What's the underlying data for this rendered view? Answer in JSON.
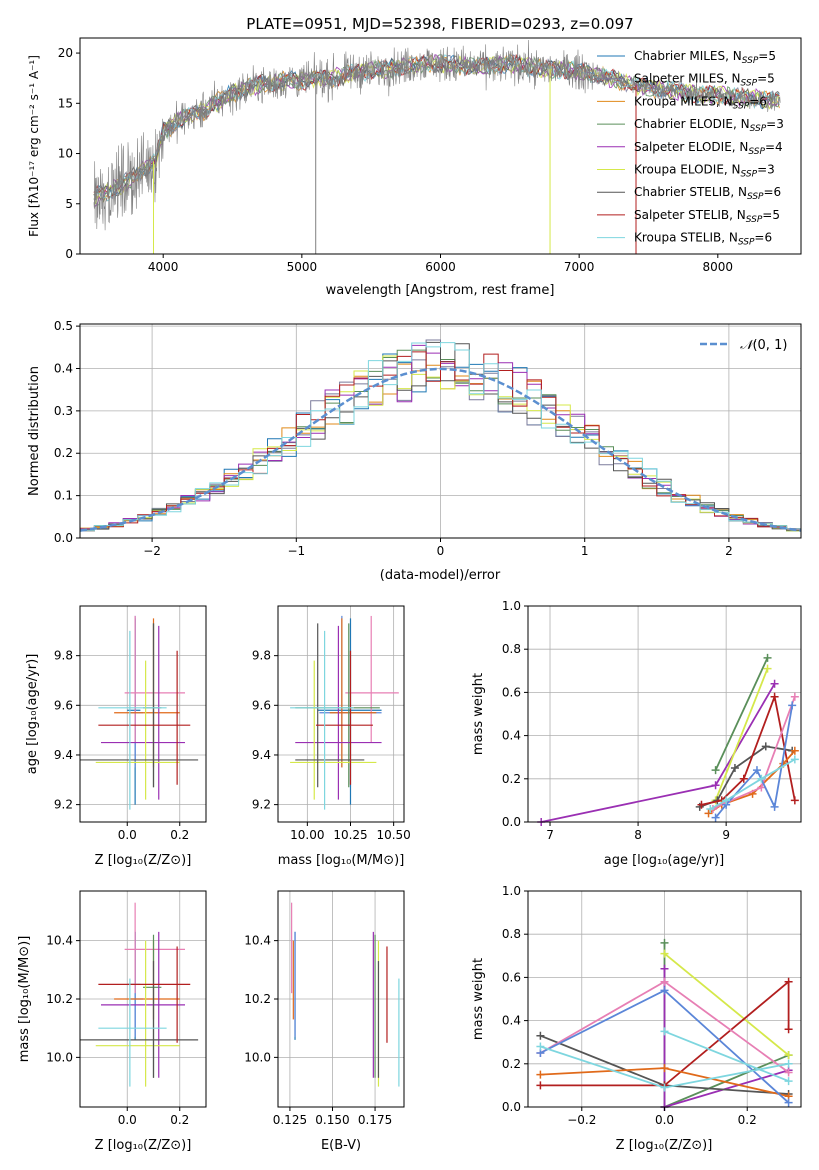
{
  "figure_title": "PLATE=0951, MJD=52398, FIBERID=0293, z=0.097",
  "colors": {
    "chabrier_miles": "#1f77b4",
    "salpeter_miles": "#7b7b9b",
    "kroupa_miles": "#e08a1a",
    "chabrier_elodie": "#5a8f5a",
    "salpeter_elodie": "#9a2fb3",
    "kroupa_elodie": "#d5e84a",
    "chabrier_stelib": "#555555",
    "salpeter_stelib": "#b21f1f",
    "kroupa_stelib": "#7ed6df",
    "extra_blue": "#5b86d8",
    "extra_pink": "#e77fb4",
    "extra_orange": "#e06a1a",
    "data_gray": "#808080",
    "normal_dash": "#5b8fd0"
  },
  "chart_data": [
    {
      "id": "spectrum",
      "type": "line",
      "title": "PLATE=0951, MJD=52398, FIBERID=0293, z=0.097",
      "xlabel": "wavelength [Angstrom, rest frame]",
      "ylabel": "Flux [fλ10⁻¹⁷ erg cm⁻² s⁻¹ A⁻¹]",
      "xlim": [
        3400,
        8600
      ],
      "ylim": [
        0,
        21.5
      ],
      "xticks": [
        "4000",
        "5000",
        "6000",
        "7000",
        "8000"
      ],
      "yticks": [
        "0",
        "5",
        "10",
        "15",
        "20"
      ],
      "grid": false,
      "legend_position": "right",
      "legend": [
        {
          "main": "Chabrier MILES, N",
          "sub": "SSP",
          "tail": "=5",
          "color": "#1f77b4"
        },
        {
          "main": "Salpeter MILES, N",
          "sub": "SSP",
          "tail": "=5",
          "color": "#7b7b9b"
        },
        {
          "main": "Kroupa MILES, N",
          "sub": "SSP",
          "tail": "=6",
          "color": "#e08a1a"
        },
        {
          "main": "Chabrier ELODIE, N",
          "sub": "SSP",
          "tail": "=3",
          "color": "#5a8f5a"
        },
        {
          "main": "Salpeter ELODIE, N",
          "sub": "SSP",
          "tail": "=4",
          "color": "#9a2fb3"
        },
        {
          "main": "Kroupa ELODIE, N",
          "sub": "SSP",
          "tail": "=3",
          "color": "#d5e84a"
        },
        {
          "main": "Chabrier STELIB, N",
          "sub": "SSP",
          "tail": "=6",
          "color": "#555555"
        },
        {
          "main": "Salpeter STELIB, N",
          "sub": "SSP",
          "tail": "=5",
          "color": "#b21f1f"
        },
        {
          "main": "Kroupa STELIB, N",
          "sub": "SSP",
          "tail": "=6",
          "color": "#7ed6df"
        }
      ],
      "continuum": [
        [
          3500,
          5.6
        ],
        [
          3600,
          6.2
        ],
        [
          3700,
          6.9
        ],
        [
          3800,
          7.8
        ],
        [
          3900,
          8.8
        ],
        [
          3950,
          9.5
        ],
        [
          4000,
          12.2
        ],
        [
          4100,
          13.2
        ],
        [
          4200,
          13.8
        ],
        [
          4300,
          14.3
        ],
        [
          4400,
          15.2
        ],
        [
          4500,
          16.0
        ],
        [
          4600,
          16.5
        ],
        [
          4700,
          16.9
        ],
        [
          4800,
          17.0
        ],
        [
          4900,
          17.3
        ],
        [
          5000,
          17.2
        ],
        [
          5100,
          17.5
        ],
        [
          5200,
          17.4
        ],
        [
          5300,
          17.8
        ],
        [
          5400,
          18.1
        ],
        [
          5500,
          18.3
        ],
        [
          5600,
          18.4
        ],
        [
          5700,
          18.6
        ],
        [
          5800,
          18.8
        ],
        [
          5900,
          19.0
        ],
        [
          6000,
          18.9
        ],
        [
          6100,
          18.8
        ],
        [
          6200,
          18.7
        ],
        [
          6300,
          18.6
        ],
        [
          6400,
          18.8
        ],
        [
          6500,
          18.9
        ],
        [
          6600,
          18.7
        ],
        [
          6700,
          18.5
        ],
        [
          6800,
          18.4
        ],
        [
          6900,
          18.3
        ],
        [
          7000,
          18.2
        ],
        [
          7100,
          17.9
        ],
        [
          7200,
          17.6
        ],
        [
          7300,
          17.2
        ],
        [
          7400,
          16.8
        ],
        [
          7500,
          16.6
        ],
        [
          7600,
          16.4
        ],
        [
          7700,
          16.2
        ],
        [
          7800,
          16.0
        ],
        [
          7900,
          15.9
        ],
        [
          8000,
          15.8
        ],
        [
          8100,
          15.7
        ],
        [
          8200,
          15.6
        ],
        [
          8300,
          15.4
        ],
        [
          8400,
          15.3
        ],
        [
          8500,
          15.2
        ]
      ]
    },
    {
      "id": "residuals",
      "type": "histogram",
      "xlabel": "(data-model)/error",
      "ylabel": "Normed distribution",
      "xlim": [
        -2.5,
        2.5
      ],
      "ylim": [
        0,
        0.505
      ],
      "xticks": [
        "−2",
        "−1",
        "0",
        "1",
        "2"
      ],
      "yticks": [
        "0.0",
        "0.1",
        "0.2",
        "0.3",
        "0.4",
        "0.5"
      ],
      "grid": true,
      "legend_position": "top-right",
      "legend_label_script": "𝒩",
      "legend_label_rest": "(0, 1)",
      "bin_width": 0.1
    },
    {
      "id": "age-vs-Z",
      "type": "scatter",
      "xlabel": "Z [log₁₀(Z/Z⊙)]",
      "ylabel": "age  [log₁₀(age/yr)]",
      "xlim": [
        -0.18,
        0.3
      ],
      "ylim": [
        9.13,
        10.0
      ],
      "xticks": [
        "0.0",
        "0.2"
      ],
      "yticks": [
        "9.2",
        "9.4",
        "9.6",
        "9.8"
      ],
      "grid": true
    },
    {
      "id": "age-vs-mass",
      "type": "scatter",
      "xlabel": "mass [log₁₀(M/M⊙)]",
      "ylabel": "",
      "xlim": [
        9.83,
        10.56
      ],
      "ylim": [
        9.13,
        10.0
      ],
      "xticks": [
        "10.00",
        "10.25",
        "10.50"
      ],
      "yticks": [
        "9.2",
        "9.4",
        "9.6",
        "9.8"
      ],
      "grid": true
    },
    {
      "id": "weight-vs-age",
      "type": "line",
      "xlabel": "age  [log₁₀(age/yr)]",
      "ylabel": "mass weight",
      "xlim": [
        6.75,
        9.85
      ],
      "ylim": [
        0,
        1.0
      ],
      "xticks": [
        "7",
        "8",
        "9"
      ],
      "yticks": [
        "0.0",
        "0.2",
        "0.4",
        "0.6",
        "0.8",
        "1.0"
      ],
      "grid": true
    },
    {
      "id": "mass-vs-Z",
      "type": "scatter",
      "xlabel": "Z [log₁₀(Z/Z⊙)]",
      "ylabel": "mass [log₁₀(M/M⊙)]",
      "xlim": [
        -0.18,
        0.3
      ],
      "ylim": [
        9.83,
        10.57
      ],
      "xticks": [
        "0.0",
        "0.2"
      ],
      "yticks": [
        "10.0",
        "10.2",
        "10.4"
      ],
      "grid": true
    },
    {
      "id": "mass-vs-ebv",
      "type": "scatter",
      "xlabel": "E(B-V)",
      "ylabel": "",
      "xlim": [
        0.118,
        0.192
      ],
      "ylim": [
        9.83,
        10.57
      ],
      "xticks": [
        "0.125",
        "0.150",
        "0.175"
      ],
      "yticks": [
        "10.0",
        "10.2",
        "10.4"
      ],
      "grid": true
    },
    {
      "id": "weight-vs-Z",
      "type": "line",
      "xlabel": "Z [log₁₀(Z/Z⊙)]",
      "ylabel": "mass weight",
      "xlim": [
        -0.33,
        0.33
      ],
      "ylim": [
        0,
        1.0
      ],
      "xticks": [
        "−0.2",
        "0.0",
        "0.2"
      ],
      "yticks": [
        "0.0",
        "0.2",
        "0.4",
        "0.6",
        "0.8",
        "1.0"
      ],
      "grid": true
    }
  ],
  "fits": [
    {
      "c": "#1f77b4",
      "Z": 0.03,
      "Zl": 0.0,
      "Zh": 0.05,
      "age": 9.58,
      "al": 9.2,
      "ah": 9.95,
      "mass": 10.25,
      "ml": 10.06,
      "mh": 10.43,
      "ebv": 0.128
    },
    {
      "c": "#5b86d8",
      "Z": 0.03,
      "Zl": 0.01,
      "Zh": 0.06,
      "age": 9.57,
      "al": 9.35,
      "ah": 9.96,
      "mass": 10.2,
      "ml": 10.07,
      "mh": 10.43,
      "ebv": 0.128
    },
    {
      "c": "#e77fb4",
      "Z": 0.03,
      "Zl": -0.01,
      "Zh": 0.22,
      "age": 9.65,
      "al": 9.45,
      "ah": 9.96,
      "mass": 10.37,
      "ml": 10.22,
      "mh": 10.53,
      "ebv": 0.126
    },
    {
      "c": "#e06a1a",
      "Z": 0.1,
      "Zl": -0.05,
      "Zh": 0.2,
      "age": 9.57,
      "al": 9.35,
      "ah": 9.95,
      "mass": 10.2,
      "ml": 10.13,
      "mh": 10.4,
      "ebv": 0.127
    },
    {
      "c": "#5a8f5a",
      "Z": 0.1,
      "Zl": 0.06,
      "Zh": 0.13,
      "age": 9.59,
      "al": 9.27,
      "ah": 9.93,
      "mass": 10.24,
      "ml": 9.93,
      "mh": 10.42,
      "ebv": 0.175
    },
    {
      "c": "#9a2fb3",
      "Z": 0.12,
      "Zl": -0.1,
      "Zh": 0.22,
      "age": 9.45,
      "al": 9.22,
      "ah": 9.92,
      "mass": 10.18,
      "ml": 9.93,
      "mh": 10.43,
      "ebv": 0.174
    },
    {
      "c": "#d5e84a",
      "Z": 0.07,
      "Zl": -0.12,
      "Zh": 0.2,
      "age": 9.37,
      "al": 9.22,
      "ah": 9.78,
      "mass": 10.04,
      "ml": 9.9,
      "mh": 10.4,
      "ebv": 0.177
    },
    {
      "c": "#555555",
      "Z": 0.1,
      "Zl": -0.18,
      "Zh": 0.27,
      "age": 9.38,
      "al": 9.27,
      "ah": 9.93,
      "mass": 10.06,
      "ml": 9.93,
      "mh": 10.33,
      "ebv": 0.177
    },
    {
      "c": "#b21f1f",
      "Z": 0.19,
      "Zl": -0.11,
      "Zh": 0.24,
      "age": 9.52,
      "al": 9.28,
      "ah": 9.82,
      "mass": 10.25,
      "ml": 10.05,
      "mh": 10.38,
      "ebv": 0.182
    },
    {
      "c": "#7ed6df",
      "Z": 0.01,
      "Zl": -0.11,
      "Zh": 0.15,
      "age": 9.59,
      "al": 9.18,
      "ah": 9.9,
      "mass": 10.1,
      "ml": 9.9,
      "mh": 10.27,
      "ebv": 0.189
    }
  ],
  "weights_age": [
    {
      "c": "#5a8f5a",
      "pts": [
        [
          8.88,
          0.24
        ],
        [
          9.47,
          0.76
        ]
      ]
    },
    {
      "c": "#9a2fb3",
      "pts": [
        [
          6.9,
          0.0
        ],
        [
          8.88,
          0.17
        ],
        [
          9.55,
          0.64
        ]
      ]
    },
    {
      "c": "#d5e84a",
      "pts": [
        [
          8.88,
          0.1
        ],
        [
          9.47,
          0.71
        ]
      ]
    },
    {
      "c": "#555555",
      "pts": [
        [
          8.7,
          0.07
        ],
        [
          8.9,
          0.1
        ],
        [
          9.1,
          0.25
        ],
        [
          9.45,
          0.35
        ],
        [
          9.75,
          0.33
        ]
      ]
    },
    {
      "c": "#b21f1f",
      "pts": [
        [
          8.72,
          0.08
        ],
        [
          8.95,
          0.1
        ],
        [
          9.2,
          0.2
        ],
        [
          9.55,
          0.58
        ],
        [
          9.78,
          0.1
        ]
      ]
    },
    {
      "c": "#e06a1a",
      "pts": [
        [
          8.8,
          0.04
        ],
        [
          8.95,
          0.08
        ],
        [
          9.3,
          0.13
        ],
        [
          9.65,
          0.27
        ],
        [
          9.78,
          0.33
        ]
      ]
    },
    {
      "c": "#e77fb4",
      "pts": [
        [
          8.85,
          0.06
        ],
        [
          9.0,
          0.09
        ],
        [
          9.4,
          0.16
        ],
        [
          9.78,
          0.58
        ]
      ]
    },
    {
      "c": "#5b86d8",
      "pts": [
        [
          8.88,
          0.02
        ],
        [
          9.0,
          0.08
        ],
        [
          9.35,
          0.24
        ],
        [
          9.55,
          0.07
        ],
        [
          9.75,
          0.54
        ]
      ]
    },
    {
      "c": "#7ed6df",
      "pts": [
        [
          8.82,
          0.06
        ],
        [
          9.0,
          0.1
        ],
        [
          9.4,
          0.2
        ],
        [
          9.78,
          0.29
        ]
      ]
    }
  ],
  "weights_Z": [
    {
      "c": "#5a8f5a",
      "pts": [
        [
          0.0,
          0.76
        ],
        [
          0.0,
          0.0
        ],
        [
          0.3,
          0.24
        ]
      ]
    },
    {
      "c": "#9a2fb3",
      "pts": [
        [
          0.0,
          0.64
        ],
        [
          0.0,
          0.0
        ],
        [
          0.3,
          0.17
        ]
      ]
    },
    {
      "c": "#d5e84a",
      "pts": [
        [
          0.0,
          0.71
        ],
        [
          0.3,
          0.24
        ]
      ]
    },
    {
      "c": "#555555",
      "pts": [
        [
          -0.3,
          0.33
        ],
        [
          0.0,
          0.1
        ],
        [
          0.3,
          0.06
        ]
      ]
    },
    {
      "c": "#b21f1f",
      "pts": [
        [
          -0.3,
          0.1
        ],
        [
          0.0,
          0.1
        ],
        [
          0.3,
          0.58
        ],
        [
          0.3,
          0.36
        ]
      ]
    },
    {
      "c": "#e06a1a",
      "pts": [
        [
          -0.3,
          0.15
        ],
        [
          0.0,
          0.18
        ],
        [
          0.3,
          0.05
        ]
      ]
    },
    {
      "c": "#e77fb4",
      "pts": [
        [
          -0.3,
          0.25
        ],
        [
          0.0,
          0.58
        ],
        [
          0.3,
          0.16
        ]
      ]
    },
    {
      "c": "#5b86d8",
      "pts": [
        [
          -0.3,
          0.25
        ],
        [
          0.0,
          0.54
        ],
        [
          0.3,
          0.02
        ]
      ]
    },
    {
      "c": "#7ed6df",
      "pts": [
        [
          -0.3,
          0.28
        ],
        [
          0.0,
          0.09
        ],
        [
          0.3,
          0.2
        ]
      ]
    },
    {
      "c": "#7ed6df",
      "pts": [
        [
          0.0,
          0.35
        ],
        [
          0.3,
          0.12
        ]
      ]
    }
  ]
}
